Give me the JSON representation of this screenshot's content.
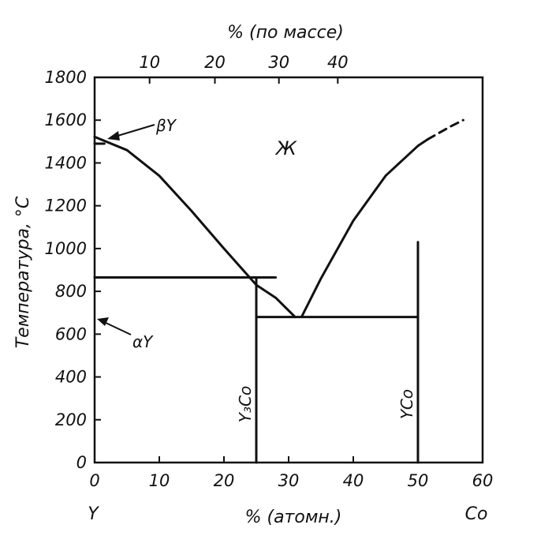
{
  "chart_data": {
    "type": "line",
    "title": "",
    "xlabel": "% (атомн.)",
    "ylabel": "Температура, °С",
    "x2label": "% (по массе)",
    "xlim": [
      0,
      60
    ],
    "ylim": [
      0,
      1800
    ],
    "x_ticks": [
      "0",
      "10",
      "20",
      "30",
      "40",
      "50",
      "60"
    ],
    "y_ticks": [
      "0",
      "200",
      "400",
      "600",
      "800",
      "1000",
      "1200",
      "1400",
      "1600",
      "1800"
    ],
    "x2_ticks": [
      "10",
      "20",
      "30",
      "40"
    ],
    "x2_tick_positions_at": [
      8.5,
      18.6,
      28.5,
      37.6
    ],
    "endpoints": {
      "left": "Y",
      "right": "Co"
    },
    "series": [
      {
        "style": "solid",
        "points": [
          [
            0,
            1522
          ],
          [
            5,
            1460
          ],
          [
            10,
            1340
          ],
          [
            15,
            1175
          ],
          [
            20,
            1000
          ],
          [
            25,
            830
          ],
          [
            28,
            770
          ],
          [
            31,
            680
          ]
        ]
      },
      {
        "style": "solid",
        "points": [
          [
            32,
            680
          ],
          [
            35,
            860
          ],
          [
            40,
            1130
          ],
          [
            45,
            1340
          ],
          [
            50,
            1480
          ],
          [
            51.5,
            1510
          ]
        ]
      },
      {
        "style": "dashed",
        "points": [
          [
            51.5,
            1510
          ],
          [
            55,
            1570
          ],
          [
            57,
            1600
          ]
        ]
      },
      {
        "style": "solid",
        "points": [
          [
            0,
            865
          ],
          [
            28,
            865
          ]
        ]
      },
      {
        "style": "solid",
        "points": [
          [
            25,
            865
          ],
          [
            25,
            0
          ]
        ]
      },
      {
        "style": "solid",
        "points": [
          [
            25,
            680
          ],
          [
            50,
            680
          ]
        ]
      },
      {
        "style": "solid",
        "points": [
          [
            50,
            1030
          ],
          [
            50,
            0
          ]
        ]
      },
      {
        "style": "solid",
        "points": [
          [
            0,
            1490
          ],
          [
            1.5,
            1490
          ]
        ]
      }
    ],
    "annotations": [
      {
        "text": "βY",
        "x": 2,
        "y": 1520
      },
      {
        "text": "αY",
        "x": 0,
        "y": 660
      },
      {
        "text": "Ж",
        "x": 29,
        "y": 1460
      },
      {
        "text": "Y₃Co",
        "x": 24,
        "y": 410
      },
      {
        "text": "YCo",
        "x": 49,
        "y": 410
      }
    ],
    "grid": false,
    "legend": "none"
  }
}
